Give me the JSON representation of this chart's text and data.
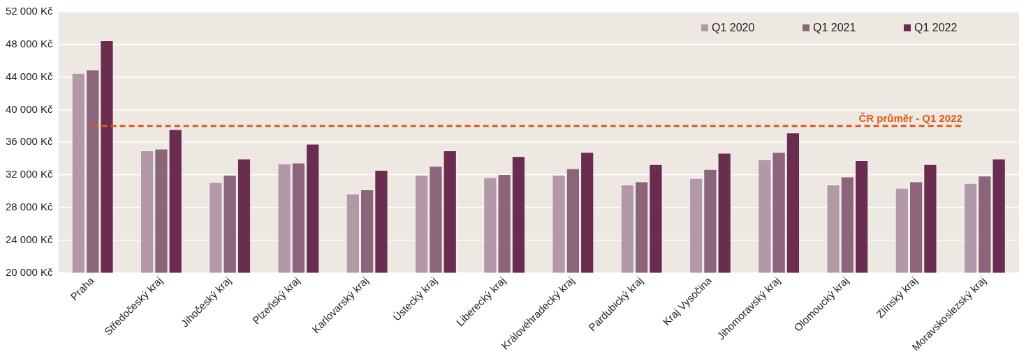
{
  "chart_data": {
    "type": "bar",
    "categories": [
      "Praha",
      "Středočeský kraj",
      "Jihočeský kraj",
      "Plzeňský kraj",
      "Karlovarský kraj",
      "Ústecký kraj",
      "Liberecký kraj",
      "Královéhradecký kraj",
      "Pardubický kraj",
      "Kraj Vysočina",
      "Jihomoravský kraj",
      "Olomoucký kraj",
      "Zlínský kraj",
      "Moravskoslezský kraj"
    ],
    "series": [
      {
        "name": "Q1 2020",
        "color": "#b398a8",
        "values": [
          44500,
          35000,
          31100,
          33400,
          29700,
          32000,
          31700,
          32000,
          30800,
          31600,
          33900,
          30800,
          30400,
          31000
        ]
      },
      {
        "name": "Q1 2021",
        "color": "#8c657c",
        "values": [
          44900,
          35200,
          32000,
          33500,
          30200,
          33100,
          32100,
          32800,
          31200,
          32700,
          34800,
          31800,
          31200,
          31900
        ]
      },
      {
        "name": "Q1 2022",
        "color": "#6b2d4f",
        "values": [
          48500,
          37600,
          34000,
          35800,
          32600,
          35000,
          34300,
          34800,
          33300,
          34700,
          37200,
          33800,
          33300,
          34000
        ]
      }
    ],
    "ylim": [
      20000,
      52000
    ],
    "yticks": [
      {
        "value": 20000,
        "label": "20 000 Kč"
      },
      {
        "value": 24000,
        "label": "24 000 Kč"
      },
      {
        "value": 28000,
        "label": "28 000 Kč"
      },
      {
        "value": 32000,
        "label": "32 000 Kč"
      },
      {
        "value": 36000,
        "label": "36 000 Kč"
      },
      {
        "value": 40000,
        "label": "40 000 Kč"
      },
      {
        "value": 44000,
        "label": "44 000 Kč"
      },
      {
        "value": 48000,
        "label": "48 000 Kč"
      },
      {
        "value": 52000,
        "label": "52 000 Kč"
      }
    ],
    "ref_lines": [
      {
        "axis": "y",
        "value": 38000,
        "label": "ČR průměr - Q1 2022",
        "color": "#e05a1a",
        "line_style": "dashed"
      }
    ],
    "grid": "y",
    "legend": "top right"
  }
}
